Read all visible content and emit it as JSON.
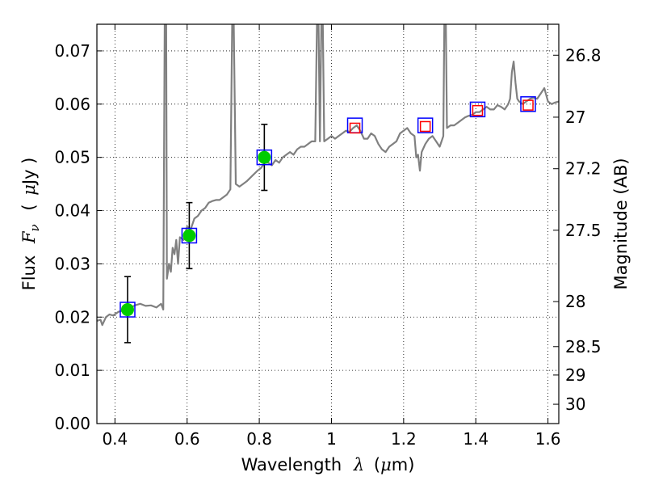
{
  "chart_data": {
    "type": "scatter",
    "title": "",
    "xlabel": "Wavelength",
    "xlabel_symbol": "λ",
    "xlabel_unit_prefix": "(",
    "xlabel_unit_mu": "μ",
    "xlabel_unit_suffix": "m)",
    "ylabel": "Flux",
    "ylabel_symbol": "F",
    "ylabel_subscript": "ν",
    "ylabel_unit_prefix": "(",
    "ylabel_unit_mu": "μ",
    "ylabel_unit_suffix": "Jy )",
    "y2label": "Magnitude (AB)",
    "xlim": [
      0.35,
      1.63
    ],
    "ylim": [
      0.0,
      0.075
    ],
    "grid": true,
    "x_ticks": [
      {
        "value": 0.4,
        "label": "0.4"
      },
      {
        "value": 0.6,
        "label": "0.6"
      },
      {
        "value": 0.8,
        "label": "0.8"
      },
      {
        "value": 1.0,
        "label": "1"
      },
      {
        "value": 1.2,
        "label": "1.2"
      },
      {
        "value": 1.4,
        "label": "1.4"
      },
      {
        "value": 1.6,
        "label": "1.6"
      }
    ],
    "y_ticks": [
      {
        "value": 0.0,
        "label": "0.00"
      },
      {
        "value": 0.01,
        "label": "0.01"
      },
      {
        "value": 0.02,
        "label": "0.02"
      },
      {
        "value": 0.03,
        "label": "0.03"
      },
      {
        "value": 0.04,
        "label": "0.04"
      },
      {
        "value": 0.05,
        "label": "0.05"
      },
      {
        "value": 0.06,
        "label": "0.06"
      },
      {
        "value": 0.07,
        "label": "0.07"
      }
    ],
    "mag_ticks": [
      {
        "value": 26.8,
        "label": "26.8"
      },
      {
        "value": 27.0,
        "label": "27"
      },
      {
        "value": 27.2,
        "label": "27.2"
      },
      {
        "value": 27.5,
        "label": "27.5"
      },
      {
        "value": 28.0,
        "label": "28"
      },
      {
        "value": 28.5,
        "label": "28.5"
      },
      {
        "value": 29.0,
        "label": "29"
      },
      {
        "value": 30.0,
        "label": "30"
      }
    ],
    "series": [
      {
        "name": "model_sed",
        "kind": "line",
        "color": "#808080",
        "points": [
          [
            0.35,
            0.0193
          ],
          [
            0.36,
            0.0195
          ],
          [
            0.365,
            0.0185
          ],
          [
            0.375,
            0.02
          ],
          [
            0.385,
            0.0205
          ],
          [
            0.395,
            0.0203
          ],
          [
            0.41,
            0.021
          ],
          [
            0.425,
            0.0213
          ],
          [
            0.44,
            0.0216
          ],
          [
            0.455,
            0.0222
          ],
          [
            0.47,
            0.0225
          ],
          [
            0.485,
            0.0221
          ],
          [
            0.5,
            0.0222
          ],
          [
            0.515,
            0.0218
          ],
          [
            0.528,
            0.0225
          ],
          [
            0.534,
            0.0214
          ],
          [
            0.538,
            0.076
          ],
          [
            0.542,
            0.076
          ],
          [
            0.544,
            0.0272
          ],
          [
            0.55,
            0.03
          ],
          [
            0.555,
            0.0285
          ],
          [
            0.56,
            0.033
          ],
          [
            0.565,
            0.0318
          ],
          [
            0.57,
            0.0345
          ],
          [
            0.575,
            0.03
          ],
          [
            0.58,
            0.035
          ],
          [
            0.59,
            0.0345
          ],
          [
            0.6,
            0.037
          ],
          [
            0.61,
            0.0365
          ],
          [
            0.62,
            0.0385
          ],
          [
            0.63,
            0.039
          ],
          [
            0.64,
            0.04
          ],
          [
            0.65,
            0.0405
          ],
          [
            0.66,
            0.0415
          ],
          [
            0.67,
            0.0418
          ],
          [
            0.68,
            0.042
          ],
          [
            0.69,
            0.042
          ],
          [
            0.7,
            0.0425
          ],
          [
            0.71,
            0.043
          ],
          [
            0.72,
            0.044
          ],
          [
            0.725,
            0.076
          ],
          [
            0.729,
            0.076
          ],
          [
            0.735,
            0.045
          ],
          [
            0.745,
            0.0445
          ],
          [
            0.755,
            0.045
          ],
          [
            0.765,
            0.0455
          ],
          [
            0.78,
            0.0465
          ],
          [
            0.795,
            0.0475
          ],
          [
            0.805,
            0.048
          ],
          [
            0.815,
            0.049
          ],
          [
            0.825,
            0.049
          ],
          [
            0.835,
            0.0485
          ],
          [
            0.845,
            0.0495
          ],
          [
            0.855,
            0.049
          ],
          [
            0.865,
            0.05
          ],
          [
            0.875,
            0.0505
          ],
          [
            0.885,
            0.051
          ],
          [
            0.895,
            0.0505
          ],
          [
            0.905,
            0.0515
          ],
          [
            0.915,
            0.052
          ],
          [
            0.925,
            0.052
          ],
          [
            0.935,
            0.0525
          ],
          [
            0.945,
            0.053
          ],
          [
            0.955,
            0.053
          ],
          [
            0.96,
            0.076
          ],
          [
            0.964,
            0.076
          ],
          [
            0.968,
            0.053
          ],
          [
            0.972,
            0.076
          ],
          [
            0.976,
            0.076
          ],
          [
            0.98,
            0.053
          ],
          [
            0.99,
            0.0535
          ],
          [
            1.0,
            0.054
          ],
          [
            1.01,
            0.0535
          ],
          [
            1.02,
            0.054
          ],
          [
            1.03,
            0.0545
          ],
          [
            1.04,
            0.055
          ],
          [
            1.05,
            0.0548
          ],
          [
            1.06,
            0.0555
          ],
          [
            1.07,
            0.056
          ],
          [
            1.08,
            0.055
          ],
          [
            1.09,
            0.0535
          ],
          [
            1.1,
            0.0535
          ],
          [
            1.11,
            0.0545
          ],
          [
            1.12,
            0.054
          ],
          [
            1.13,
            0.0525
          ],
          [
            1.14,
            0.0515
          ],
          [
            1.15,
            0.051
          ],
          [
            1.16,
            0.052
          ],
          [
            1.17,
            0.0525
          ],
          [
            1.18,
            0.053
          ],
          [
            1.19,
            0.0545
          ],
          [
            1.2,
            0.055
          ],
          [
            1.21,
            0.0555
          ],
          [
            1.22,
            0.0545
          ],
          [
            1.23,
            0.054
          ],
          [
            1.235,
            0.05
          ],
          [
            1.24,
            0.0505
          ],
          [
            1.245,
            0.0475
          ],
          [
            1.25,
            0.051
          ],
          [
            1.26,
            0.0525
          ],
          [
            1.27,
            0.0535
          ],
          [
            1.28,
            0.054
          ],
          [
            1.29,
            0.053
          ],
          [
            1.3,
            0.052
          ],
          [
            1.305,
            0.053
          ],
          [
            1.31,
            0.054
          ],
          [
            1.313,
            0.076
          ],
          [
            1.317,
            0.076
          ],
          [
            1.32,
            0.0555
          ],
          [
            1.33,
            0.056
          ],
          [
            1.34,
            0.056
          ],
          [
            1.35,
            0.0565
          ],
          [
            1.36,
            0.057
          ],
          [
            1.37,
            0.0575
          ],
          [
            1.38,
            0.0578
          ],
          [
            1.39,
            0.058
          ],
          [
            1.4,
            0.0585
          ],
          [
            1.41,
            0.0585
          ],
          [
            1.42,
            0.059
          ],
          [
            1.43,
            0.0595
          ],
          [
            1.44,
            0.059
          ],
          [
            1.45,
            0.059
          ],
          [
            1.46,
            0.0598
          ],
          [
            1.47,
            0.0595
          ],
          [
            1.48,
            0.059
          ],
          [
            1.49,
            0.06
          ],
          [
            1.495,
            0.061
          ],
          [
            1.5,
            0.066
          ],
          [
            1.505,
            0.068
          ],
          [
            1.51,
            0.064
          ],
          [
            1.515,
            0.061
          ],
          [
            1.52,
            0.0605
          ],
          [
            1.53,
            0.06
          ],
          [
            1.54,
            0.0605
          ],
          [
            1.55,
            0.061
          ],
          [
            1.56,
            0.0612
          ],
          [
            1.57,
            0.061
          ],
          [
            1.58,
            0.062
          ],
          [
            1.59,
            0.063
          ],
          [
            1.6,
            0.0605
          ],
          [
            1.61,
            0.06
          ],
          [
            1.62,
            0.0603
          ],
          [
            1.63,
            0.0605
          ]
        ]
      },
      {
        "name": "observed_photometry",
        "kind": "points",
        "color": "#00cc00",
        "errorbar_color": "#000000",
        "points": [
          {
            "x": 0.435,
            "y": 0.0214,
            "yerr": 0.0062
          },
          {
            "x": 0.606,
            "y": 0.0353,
            "yerr": 0.0062
          },
          {
            "x": 0.814,
            "y": 0.05,
            "yerr": 0.0062
          }
        ]
      },
      {
        "name": "model_photometry",
        "kind": "open_squares",
        "color": "#0000ff",
        "points": [
          {
            "x": 0.435,
            "y": 0.0214
          },
          {
            "x": 0.606,
            "y": 0.0353
          },
          {
            "x": 0.814,
            "y": 0.05
          },
          {
            "x": 1.065,
            "y": 0.056
          },
          {
            "x": 1.26,
            "y": 0.056
          },
          {
            "x": 1.405,
            "y": 0.059
          },
          {
            "x": 1.545,
            "y": 0.06
          }
        ]
      },
      {
        "name": "upper_limits",
        "kind": "open_squares",
        "color": "#ff0000",
        "points": [
          {
            "x": 1.065,
            "y": 0.0555
          },
          {
            "x": 1.26,
            "y": 0.0558
          },
          {
            "x": 1.405,
            "y": 0.0588
          },
          {
            "x": 1.545,
            "y": 0.0598
          }
        ]
      }
    ]
  }
}
